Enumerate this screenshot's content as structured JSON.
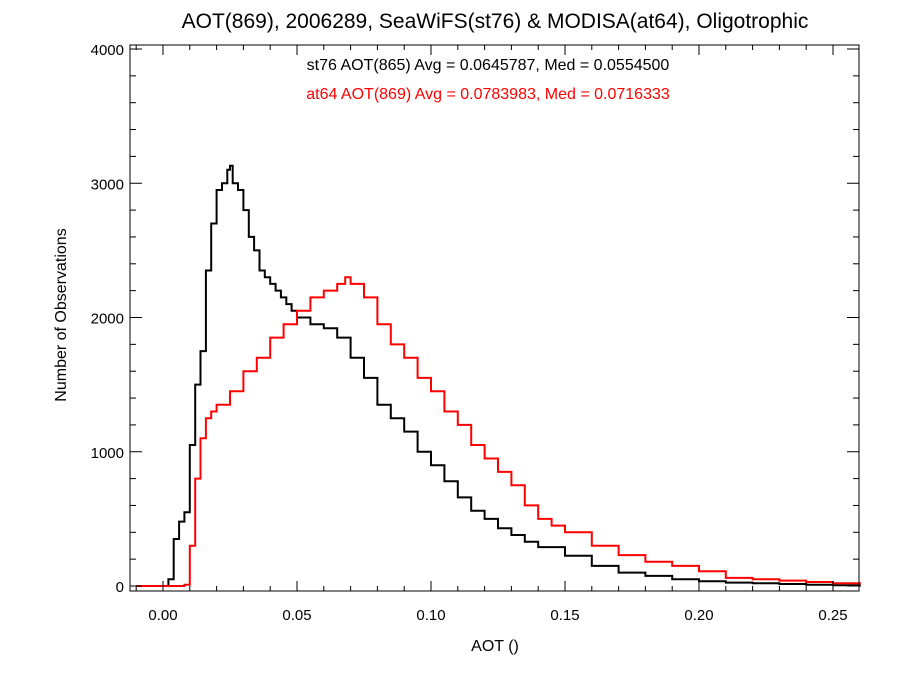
{
  "chart_data": {
    "type": "line",
    "title": "AOT(869), 2006289, SeaWiFS(st76) & MODISA(at64), Oligotrophic",
    "xlabel": "AOT ()",
    "ylabel": "Number of Observations",
    "xlim": [
      -0.01,
      0.26
    ],
    "ylim": [
      0,
      4000
    ],
    "x_ticks": [
      0.0,
      0.05,
      0.1,
      0.15,
      0.2,
      0.25
    ],
    "x_tick_labels": [
      "0.00",
      "0.05",
      "0.10",
      "0.15",
      "0.20",
      "0.25"
    ],
    "y_ticks": [
      0,
      1000,
      2000,
      3000,
      4000
    ],
    "y_tick_labels": [
      "0",
      "1000",
      "2000",
      "3000",
      "4000"
    ],
    "grid": false,
    "annotations": [
      {
        "text": "st76 AOT(865) Avg = 0.0645787, Med = 0.0554500",
        "color": "#000000"
      },
      {
        "text": "at64 AOT(869) Avg = 0.0783983, Med = 0.0716333",
        "color": "#ff0000"
      }
    ],
    "series": [
      {
        "color": "#000000",
        "x": [
          -0.01,
          0.0,
          0.002,
          0.004,
          0.006,
          0.008,
          0.01,
          0.012,
          0.014,
          0.016,
          0.018,
          0.02,
          0.022,
          0.024,
          0.025,
          0.026,
          0.028,
          0.03,
          0.032,
          0.034,
          0.036,
          0.038,
          0.04,
          0.042,
          0.044,
          0.046,
          0.048,
          0.05,
          0.055,
          0.06,
          0.065,
          0.07,
          0.075,
          0.08,
          0.085,
          0.09,
          0.095,
          0.1,
          0.105,
          0.11,
          0.115,
          0.12,
          0.125,
          0.13,
          0.135,
          0.14,
          0.15,
          0.16,
          0.17,
          0.18,
          0.19,
          0.2,
          0.21,
          0.22,
          0.23,
          0.24,
          0.25,
          0.26
        ],
        "values": [
          0,
          0,
          50,
          350,
          480,
          550,
          1050,
          1500,
          1750,
          2350,
          2700,
          2950,
          3000,
          3100,
          3130,
          3000,
          2950,
          2800,
          2600,
          2500,
          2350,
          2300,
          2250,
          2200,
          2150,
          2100,
          2050,
          2000,
          1950,
          1920,
          1850,
          1700,
          1550,
          1350,
          1250,
          1150,
          1000,
          900,
          780,
          660,
          560,
          500,
          430,
          380,
          330,
          290,
          225,
          150,
          100,
          75,
          50,
          35,
          25,
          20,
          15,
          10,
          5,
          3
        ]
      },
      {
        "color": "#ff0000",
        "x": [
          -0.01,
          0.0,
          0.005,
          0.008,
          0.01,
          0.012,
          0.014,
          0.016,
          0.018,
          0.02,
          0.025,
          0.03,
          0.035,
          0.04,
          0.045,
          0.05,
          0.055,
          0.06,
          0.065,
          0.068,
          0.07,
          0.075,
          0.08,
          0.085,
          0.09,
          0.095,
          0.1,
          0.105,
          0.11,
          0.115,
          0.12,
          0.125,
          0.13,
          0.135,
          0.14,
          0.145,
          0.15,
          0.16,
          0.17,
          0.18,
          0.19,
          0.2,
          0.21,
          0.22,
          0.23,
          0.24,
          0.25,
          0.26
        ],
        "values": [
          0,
          0,
          0,
          10,
          300,
          800,
          1100,
          1250,
          1300,
          1350,
          1450,
          1600,
          1700,
          1850,
          1950,
          2050,
          2150,
          2200,
          2250,
          2300,
          2250,
          2150,
          1950,
          1800,
          1700,
          1550,
          1450,
          1300,
          1200,
          1050,
          950,
          850,
          750,
          600,
          500,
          450,
          400,
          300,
          230,
          180,
          150,
          110,
          60,
          50,
          40,
          30,
          20,
          15
        ]
      }
    ]
  }
}
